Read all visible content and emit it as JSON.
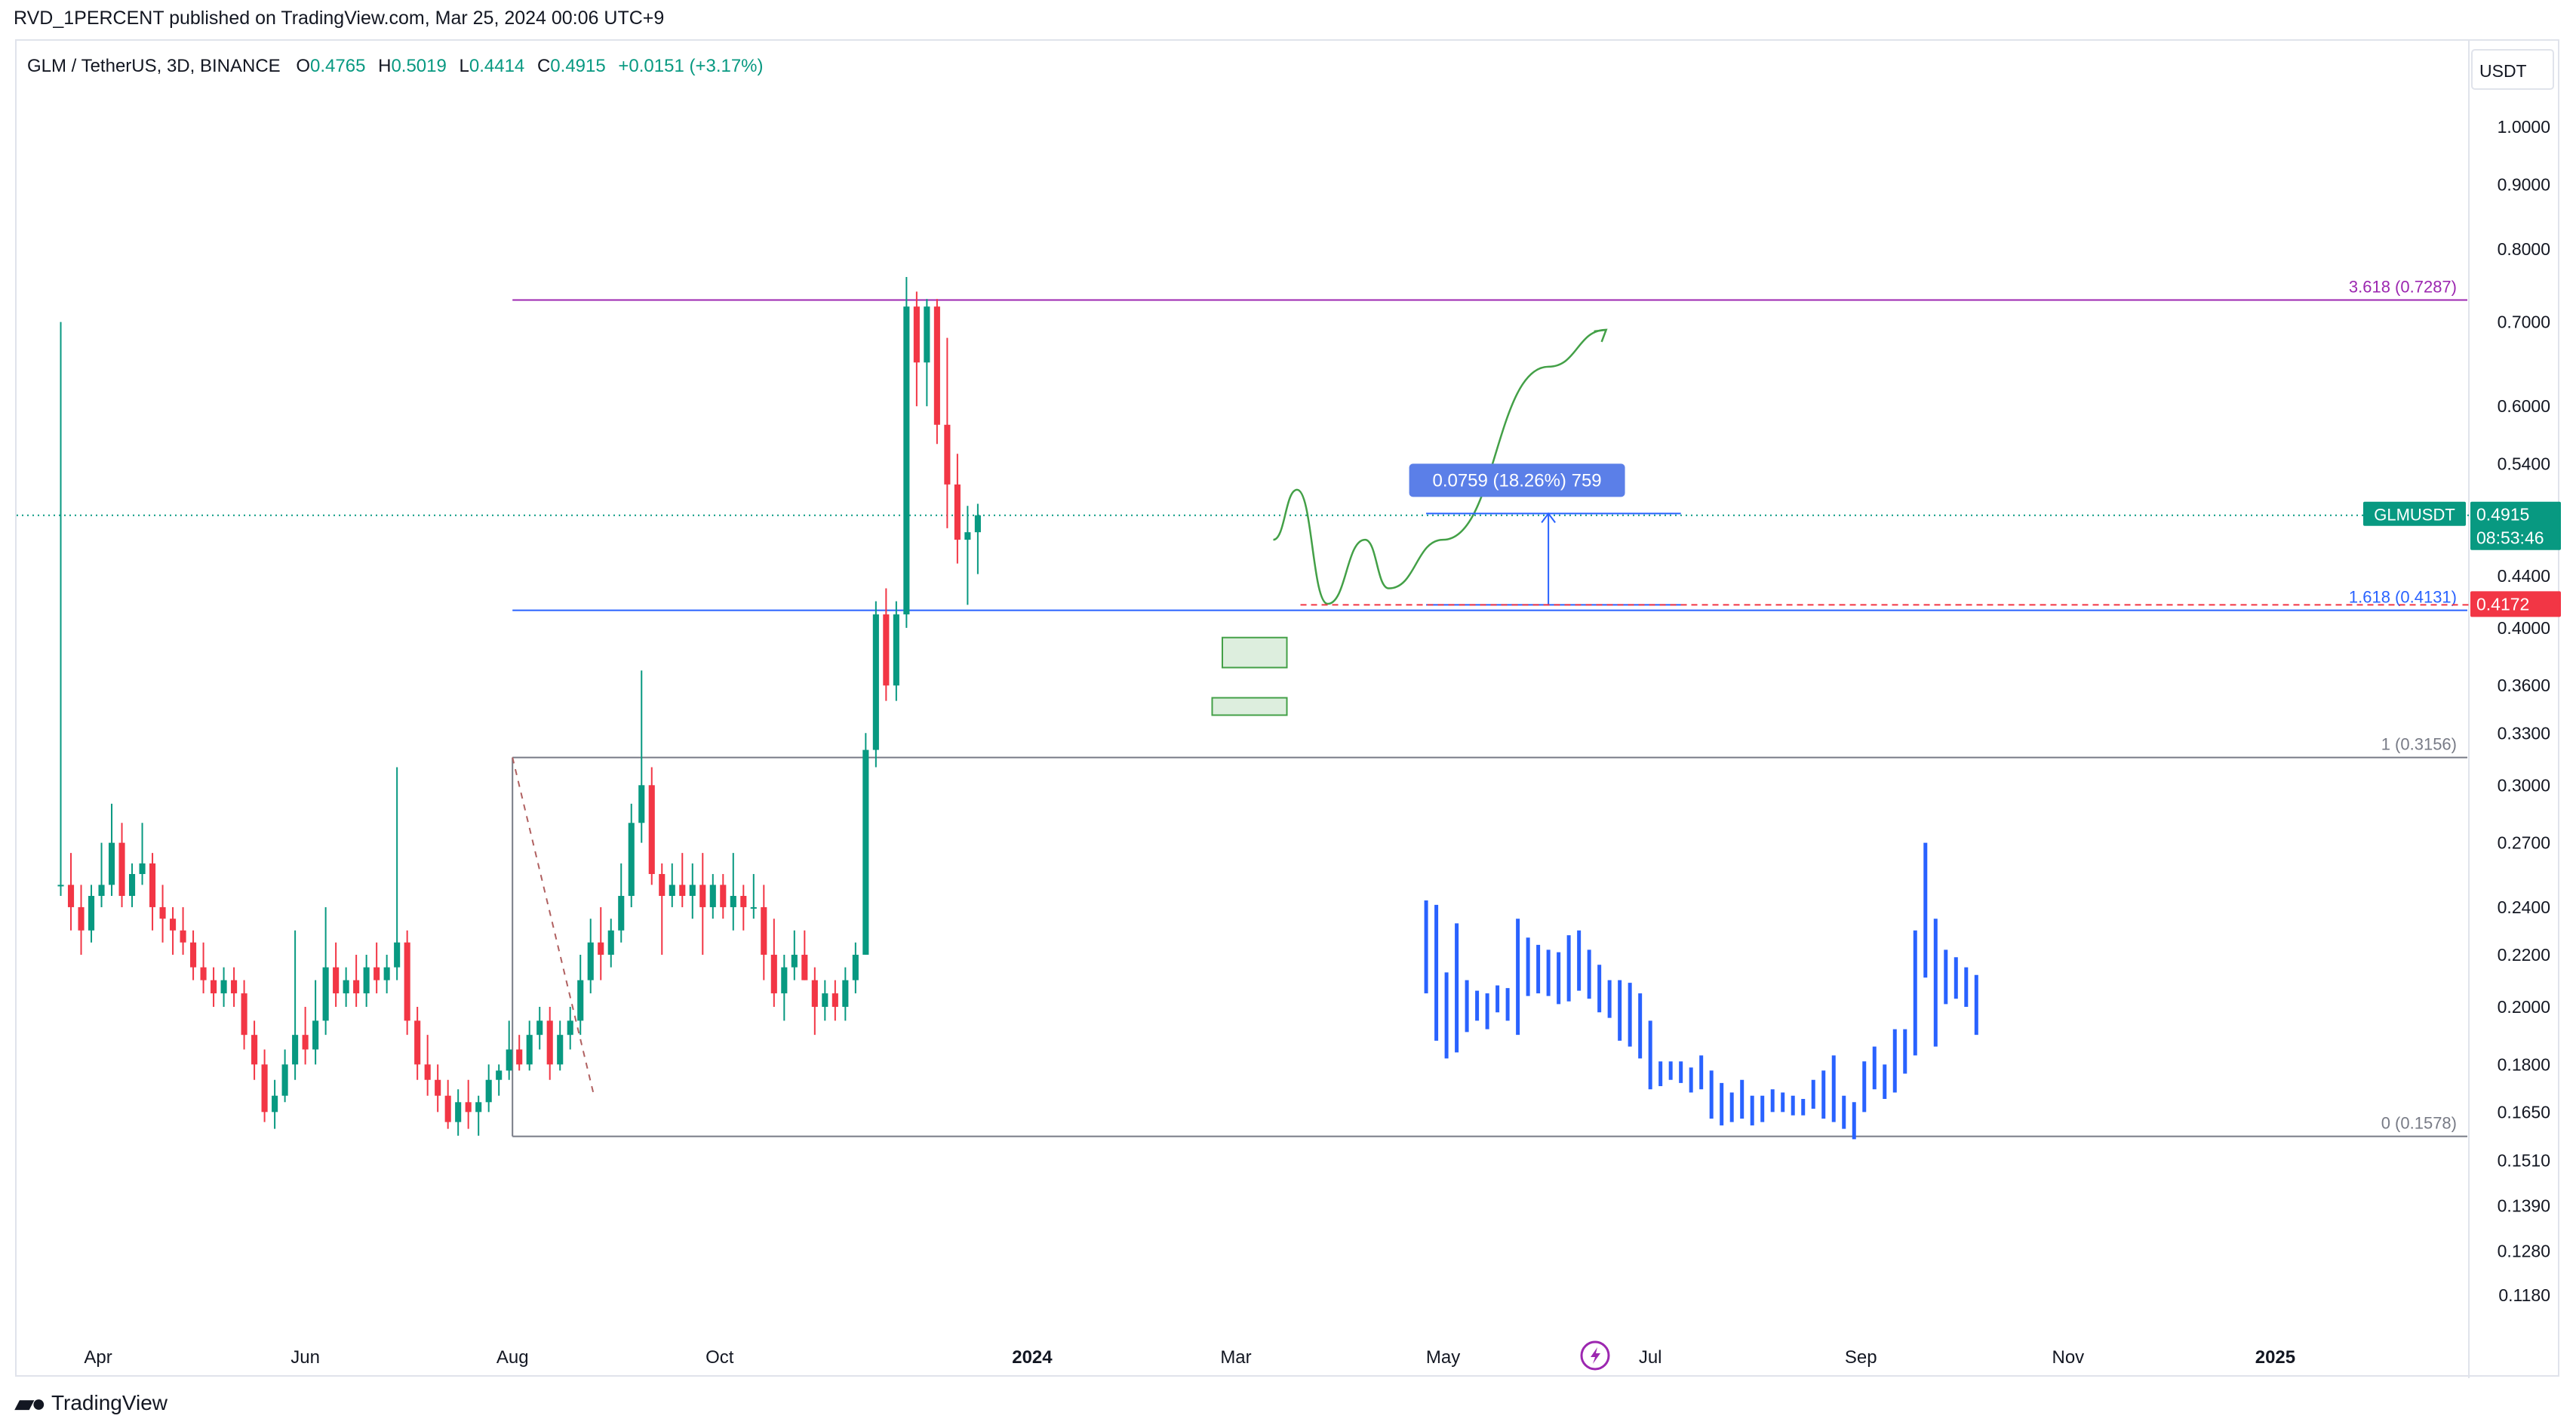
{
  "header": {
    "published": "RVD_1PERCENT published on TradingView.com, Mar 25, 2024 00:06 UTC+9"
  },
  "legend": {
    "symbol": "GLM / TetherUS, 3D, BINANCE",
    "o_label": "O",
    "o": "0.4765",
    "h_label": "H",
    "h": "0.5019",
    "l_label": "L",
    "l": "0.4414",
    "c_label": "C",
    "c": "0.4915",
    "change": "+0.0151 (+3.17%)"
  },
  "footer": {
    "brand": "TradingView"
  },
  "colors": {
    "up": "#089981",
    "down": "#f23645",
    "projection": "#2962ff",
    "fib_top": "#9c27b0",
    "fib_mid": "#2962ff",
    "grey_line": "#787b86",
    "accent_green": "#43a047"
  },
  "chart_data": {
    "type": "candlestick",
    "currency": "USDT",
    "y_scale": "log",
    "ylim": [
      0.112,
      1.06
    ],
    "y_ticks": [
      "1.0000",
      "0.9000",
      "0.8000",
      "0.7000",
      "0.6000",
      "0.5400",
      "0.4400",
      "0.4000",
      "0.3600",
      "0.3300",
      "0.3000",
      "0.2700",
      "0.2400",
      "0.2200",
      "0.2000",
      "0.1800",
      "0.1650",
      "0.1510",
      "0.1390",
      "0.1280",
      "0.1180"
    ],
    "x_ticks": [
      {
        "label": "Apr",
        "date": "2023-04-01",
        "bold": false
      },
      {
        "label": "Jun",
        "date": "2023-06-01",
        "bold": false
      },
      {
        "label": "Aug",
        "date": "2023-08-01",
        "bold": false
      },
      {
        "label": "Oct",
        "date": "2023-10-01",
        "bold": false
      },
      {
        "label": "2024",
        "date": "2024-01-01",
        "bold": true
      },
      {
        "label": "Mar",
        "date": "2024-03-01",
        "bold": false
      },
      {
        "label": "May",
        "date": "2024-05-01",
        "bold": false
      },
      {
        "label": "Jul",
        "date": "2024-07-01",
        "bold": false
      },
      {
        "label": "Sep",
        "date": "2024-09-01",
        "bold": false
      },
      {
        "label": "Nov",
        "date": "2024-11-01",
        "bold": false
      },
      {
        "label": "2025",
        "date": "2025-01-01",
        "bold": true
      }
    ],
    "xlim": [
      "2023-03-08",
      "2025-02-27"
    ],
    "first_candle_date": "2023-03-21",
    "candle_interval_days": 3,
    "candles": [
      [
        0.25,
        0.7,
        0.245,
        0.25
      ],
      [
        0.25,
        0.265,
        0.23,
        0.24
      ],
      [
        0.24,
        0.25,
        0.22,
        0.23
      ],
      [
        0.23,
        0.25,
        0.225,
        0.245
      ],
      [
        0.245,
        0.27,
        0.24,
        0.25
      ],
      [
        0.25,
        0.29,
        0.245,
        0.27
      ],
      [
        0.27,
        0.28,
        0.24,
        0.245
      ],
      [
        0.245,
        0.26,
        0.24,
        0.255
      ],
      [
        0.255,
        0.28,
        0.25,
        0.26
      ],
      [
        0.26,
        0.265,
        0.23,
        0.24
      ],
      [
        0.24,
        0.25,
        0.225,
        0.235
      ],
      [
        0.235,
        0.24,
        0.22,
        0.23
      ],
      [
        0.23,
        0.24,
        0.22,
        0.225
      ],
      [
        0.225,
        0.23,
        0.21,
        0.215
      ],
      [
        0.215,
        0.225,
        0.205,
        0.21
      ],
      [
        0.21,
        0.215,
        0.2,
        0.205
      ],
      [
        0.205,
        0.215,
        0.2,
        0.21
      ],
      [
        0.21,
        0.215,
        0.2,
        0.205
      ],
      [
        0.205,
        0.21,
        0.185,
        0.19
      ],
      [
        0.19,
        0.195,
        0.175,
        0.18
      ],
      [
        0.18,
        0.185,
        0.162,
        0.165
      ],
      [
        0.165,
        0.175,
        0.16,
        0.17
      ],
      [
        0.17,
        0.185,
        0.168,
        0.18
      ],
      [
        0.18,
        0.23,
        0.175,
        0.19
      ],
      [
        0.19,
        0.2,
        0.18,
        0.185
      ],
      [
        0.185,
        0.21,
        0.18,
        0.195
      ],
      [
        0.195,
        0.24,
        0.19,
        0.215
      ],
      [
        0.215,
        0.225,
        0.2,
        0.205
      ],
      [
        0.205,
        0.215,
        0.2,
        0.21
      ],
      [
        0.21,
        0.22,
        0.2,
        0.205
      ],
      [
        0.205,
        0.22,
        0.2,
        0.215
      ],
      [
        0.215,
        0.225,
        0.205,
        0.21
      ],
      [
        0.21,
        0.22,
        0.205,
        0.215
      ],
      [
        0.215,
        0.31,
        0.21,
        0.225
      ],
      [
        0.225,
        0.23,
        0.19,
        0.195
      ],
      [
        0.195,
        0.2,
        0.175,
        0.18
      ],
      [
        0.18,
        0.19,
        0.17,
        0.175
      ],
      [
        0.175,
        0.18,
        0.165,
        0.17
      ],
      [
        0.17,
        0.175,
        0.16,
        0.162
      ],
      [
        0.162,
        0.172,
        0.158,
        0.168
      ],
      [
        0.168,
        0.175,
        0.16,
        0.165
      ],
      [
        0.165,
        0.17,
        0.158,
        0.168
      ],
      [
        0.168,
        0.18,
        0.165,
        0.175
      ],
      [
        0.175,
        0.18,
        0.17,
        0.178
      ],
      [
        0.178,
        0.195,
        0.175,
        0.185
      ],
      [
        0.185,
        0.19,
        0.178,
        0.18
      ],
      [
        0.18,
        0.195,
        0.178,
        0.19
      ],
      [
        0.19,
        0.2,
        0.185,
        0.195
      ],
      [
        0.195,
        0.2,
        0.175,
        0.18
      ],
      [
        0.18,
        0.195,
        0.178,
        0.19
      ],
      [
        0.19,
        0.2,
        0.185,
        0.195
      ],
      [
        0.195,
        0.22,
        0.19,
        0.21
      ],
      [
        0.21,
        0.235,
        0.205,
        0.225
      ],
      [
        0.225,
        0.24,
        0.21,
        0.22
      ],
      [
        0.22,
        0.235,
        0.215,
        0.23
      ],
      [
        0.23,
        0.26,
        0.225,
        0.245
      ],
      [
        0.245,
        0.29,
        0.24,
        0.28
      ],
      [
        0.28,
        0.37,
        0.27,
        0.3
      ],
      [
        0.3,
        0.31,
        0.25,
        0.255
      ],
      [
        0.255,
        0.26,
        0.22,
        0.245
      ],
      [
        0.245,
        0.26,
        0.24,
        0.25
      ],
      [
        0.25,
        0.265,
        0.24,
        0.245
      ],
      [
        0.245,
        0.26,
        0.235,
        0.25
      ],
      [
        0.25,
        0.265,
        0.22,
        0.24
      ],
      [
        0.24,
        0.255,
        0.235,
        0.25
      ],
      [
        0.25,
        0.255,
        0.235,
        0.24
      ],
      [
        0.24,
        0.265,
        0.23,
        0.245
      ],
      [
        0.245,
        0.25,
        0.23,
        0.24
      ],
      [
        0.24,
        0.255,
        0.235,
        0.24
      ],
      [
        0.24,
        0.25,
        0.21,
        0.22
      ],
      [
        0.22,
        0.235,
        0.2,
        0.205
      ],
      [
        0.205,
        0.22,
        0.195,
        0.215
      ],
      [
        0.215,
        0.23,
        0.21,
        0.22
      ],
      [
        0.22,
        0.23,
        0.21,
        0.21
      ],
      [
        0.21,
        0.215,
        0.19,
        0.2
      ],
      [
        0.2,
        0.21,
        0.195,
        0.205
      ],
      [
        0.205,
        0.21,
        0.195,
        0.2
      ],
      [
        0.2,
        0.215,
        0.195,
        0.21
      ],
      [
        0.21,
        0.225,
        0.205,
        0.22
      ],
      [
        0.22,
        0.33,
        0.22,
        0.32
      ],
      [
        0.32,
        0.42,
        0.31,
        0.41
      ],
      [
        0.41,
        0.43,
        0.35,
        0.36
      ],
      [
        0.36,
        0.42,
        0.35,
        0.41
      ],
      [
        0.41,
        0.76,
        0.4,
        0.72
      ],
      [
        0.72,
        0.74,
        0.6,
        0.65
      ],
      [
        0.65,
        0.73,
        0.6,
        0.72
      ],
      [
        0.72,
        0.73,
        0.56,
        0.58
      ],
      [
        0.58,
        0.68,
        0.48,
        0.52
      ],
      [
        0.52,
        0.55,
        0.45,
        0.47
      ],
      [
        0.47,
        0.5,
        0.4172,
        0.4765
      ],
      [
        0.4765,
        0.5019,
        0.4414,
        0.4915
      ]
    ],
    "projection_bars": [
      [
        0.205,
        0.243
      ],
      [
        0.188,
        0.241
      ],
      [
        0.182,
        0.213
      ],
      [
        0.184,
        0.233
      ],
      [
        0.191,
        0.21
      ],
      [
        0.195,
        0.206
      ],
      [
        0.192,
        0.205
      ],
      [
        0.198,
        0.208
      ],
      [
        0.195,
        0.207
      ],
      [
        0.19,
        0.235
      ],
      [
        0.204,
        0.227
      ],
      [
        0.205,
        0.224
      ],
      [
        0.204,
        0.222
      ],
      [
        0.201,
        0.221
      ],
      [
        0.202,
        0.228
      ],
      [
        0.206,
        0.23
      ],
      [
        0.203,
        0.222
      ],
      [
        0.198,
        0.216
      ],
      [
        0.196,
        0.21
      ],
      [
        0.188,
        0.21
      ],
      [
        0.186,
        0.209
      ],
      [
        0.182,
        0.205
      ],
      [
        0.172,
        0.195
      ],
      [
        0.173,
        0.181
      ],
      [
        0.175,
        0.181
      ],
      [
        0.174,
        0.181
      ],
      [
        0.171,
        0.179
      ],
      [
        0.172,
        0.183
      ],
      [
        0.163,
        0.178
      ],
      [
        0.161,
        0.174
      ],
      [
        0.162,
        0.171
      ],
      [
        0.163,
        0.175
      ],
      [
        0.161,
        0.17
      ],
      [
        0.162,
        0.17
      ],
      [
        0.165,
        0.172
      ],
      [
        0.165,
        0.171
      ],
      [
        0.164,
        0.17
      ],
      [
        0.164,
        0.169
      ],
      [
        0.166,
        0.175
      ],
      [
        0.163,
        0.178
      ],
      [
        0.162,
        0.183
      ],
      [
        0.16,
        0.17
      ],
      [
        0.157,
        0.168
      ],
      [
        0.165,
        0.181
      ],
      [
        0.172,
        0.186
      ],
      [
        0.169,
        0.18
      ],
      [
        0.171,
        0.192
      ],
      [
        0.177,
        0.192
      ],
      [
        0.183,
        0.23
      ],
      [
        0.211,
        0.27
      ],
      [
        0.186,
        0.235
      ],
      [
        0.201,
        0.222
      ],
      [
        0.203,
        0.219
      ],
      [
        0.2,
        0.215
      ],
      [
        0.19,
        0.212
      ]
    ],
    "price_labels": [
      {
        "text": "GLMUSDT",
        "value": "0.4915",
        "time": "08:53:46",
        "price": 0.4915,
        "bg": "#089981"
      },
      {
        "text": "",
        "value": "0.4172",
        "time": "",
        "price": 0.4172,
        "bg": "#f23645"
      }
    ],
    "fib_levels": [
      {
        "label": "3.618 (0.7287)",
        "price": 0.7287,
        "color": "#9c27b0"
      },
      {
        "label": "1.618 (0.4131)",
        "price": 0.4131,
        "color": "#2962ff"
      },
      {
        "label": "1 (0.3156)",
        "price": 0.3156,
        "color": "#787b86"
      },
      {
        "label": "0 (0.1578)",
        "price": 0.1578,
        "color": "#787b86"
      }
    ],
    "fib_start_date": "2023-08-01",
    "measure": {
      "label": "0.0759 (18.26%) 759",
      "from": 0.4172,
      "to": 0.4931
    },
    "zones": [
      {
        "from_date": "2024-02-26",
        "to_date": "2024-03-16",
        "low": 0.372,
        "high": 0.393
      },
      {
        "from_date": "2024-02-23",
        "to_date": "2024-03-16",
        "low": 0.341,
        "high": 0.352
      }
    ],
    "path_points": [
      [
        "2024-03-12",
        0.47
      ],
      [
        "2024-03-19",
        0.515
      ],
      [
        "2024-03-28",
        0.418
      ],
      [
        "2024-04-08",
        0.47
      ],
      [
        "2024-04-15",
        0.43
      ],
      [
        "2024-05-01",
        0.47
      ],
      [
        "2024-06-01",
        0.645
      ],
      [
        "2024-06-18",
        0.69
      ]
    ]
  }
}
